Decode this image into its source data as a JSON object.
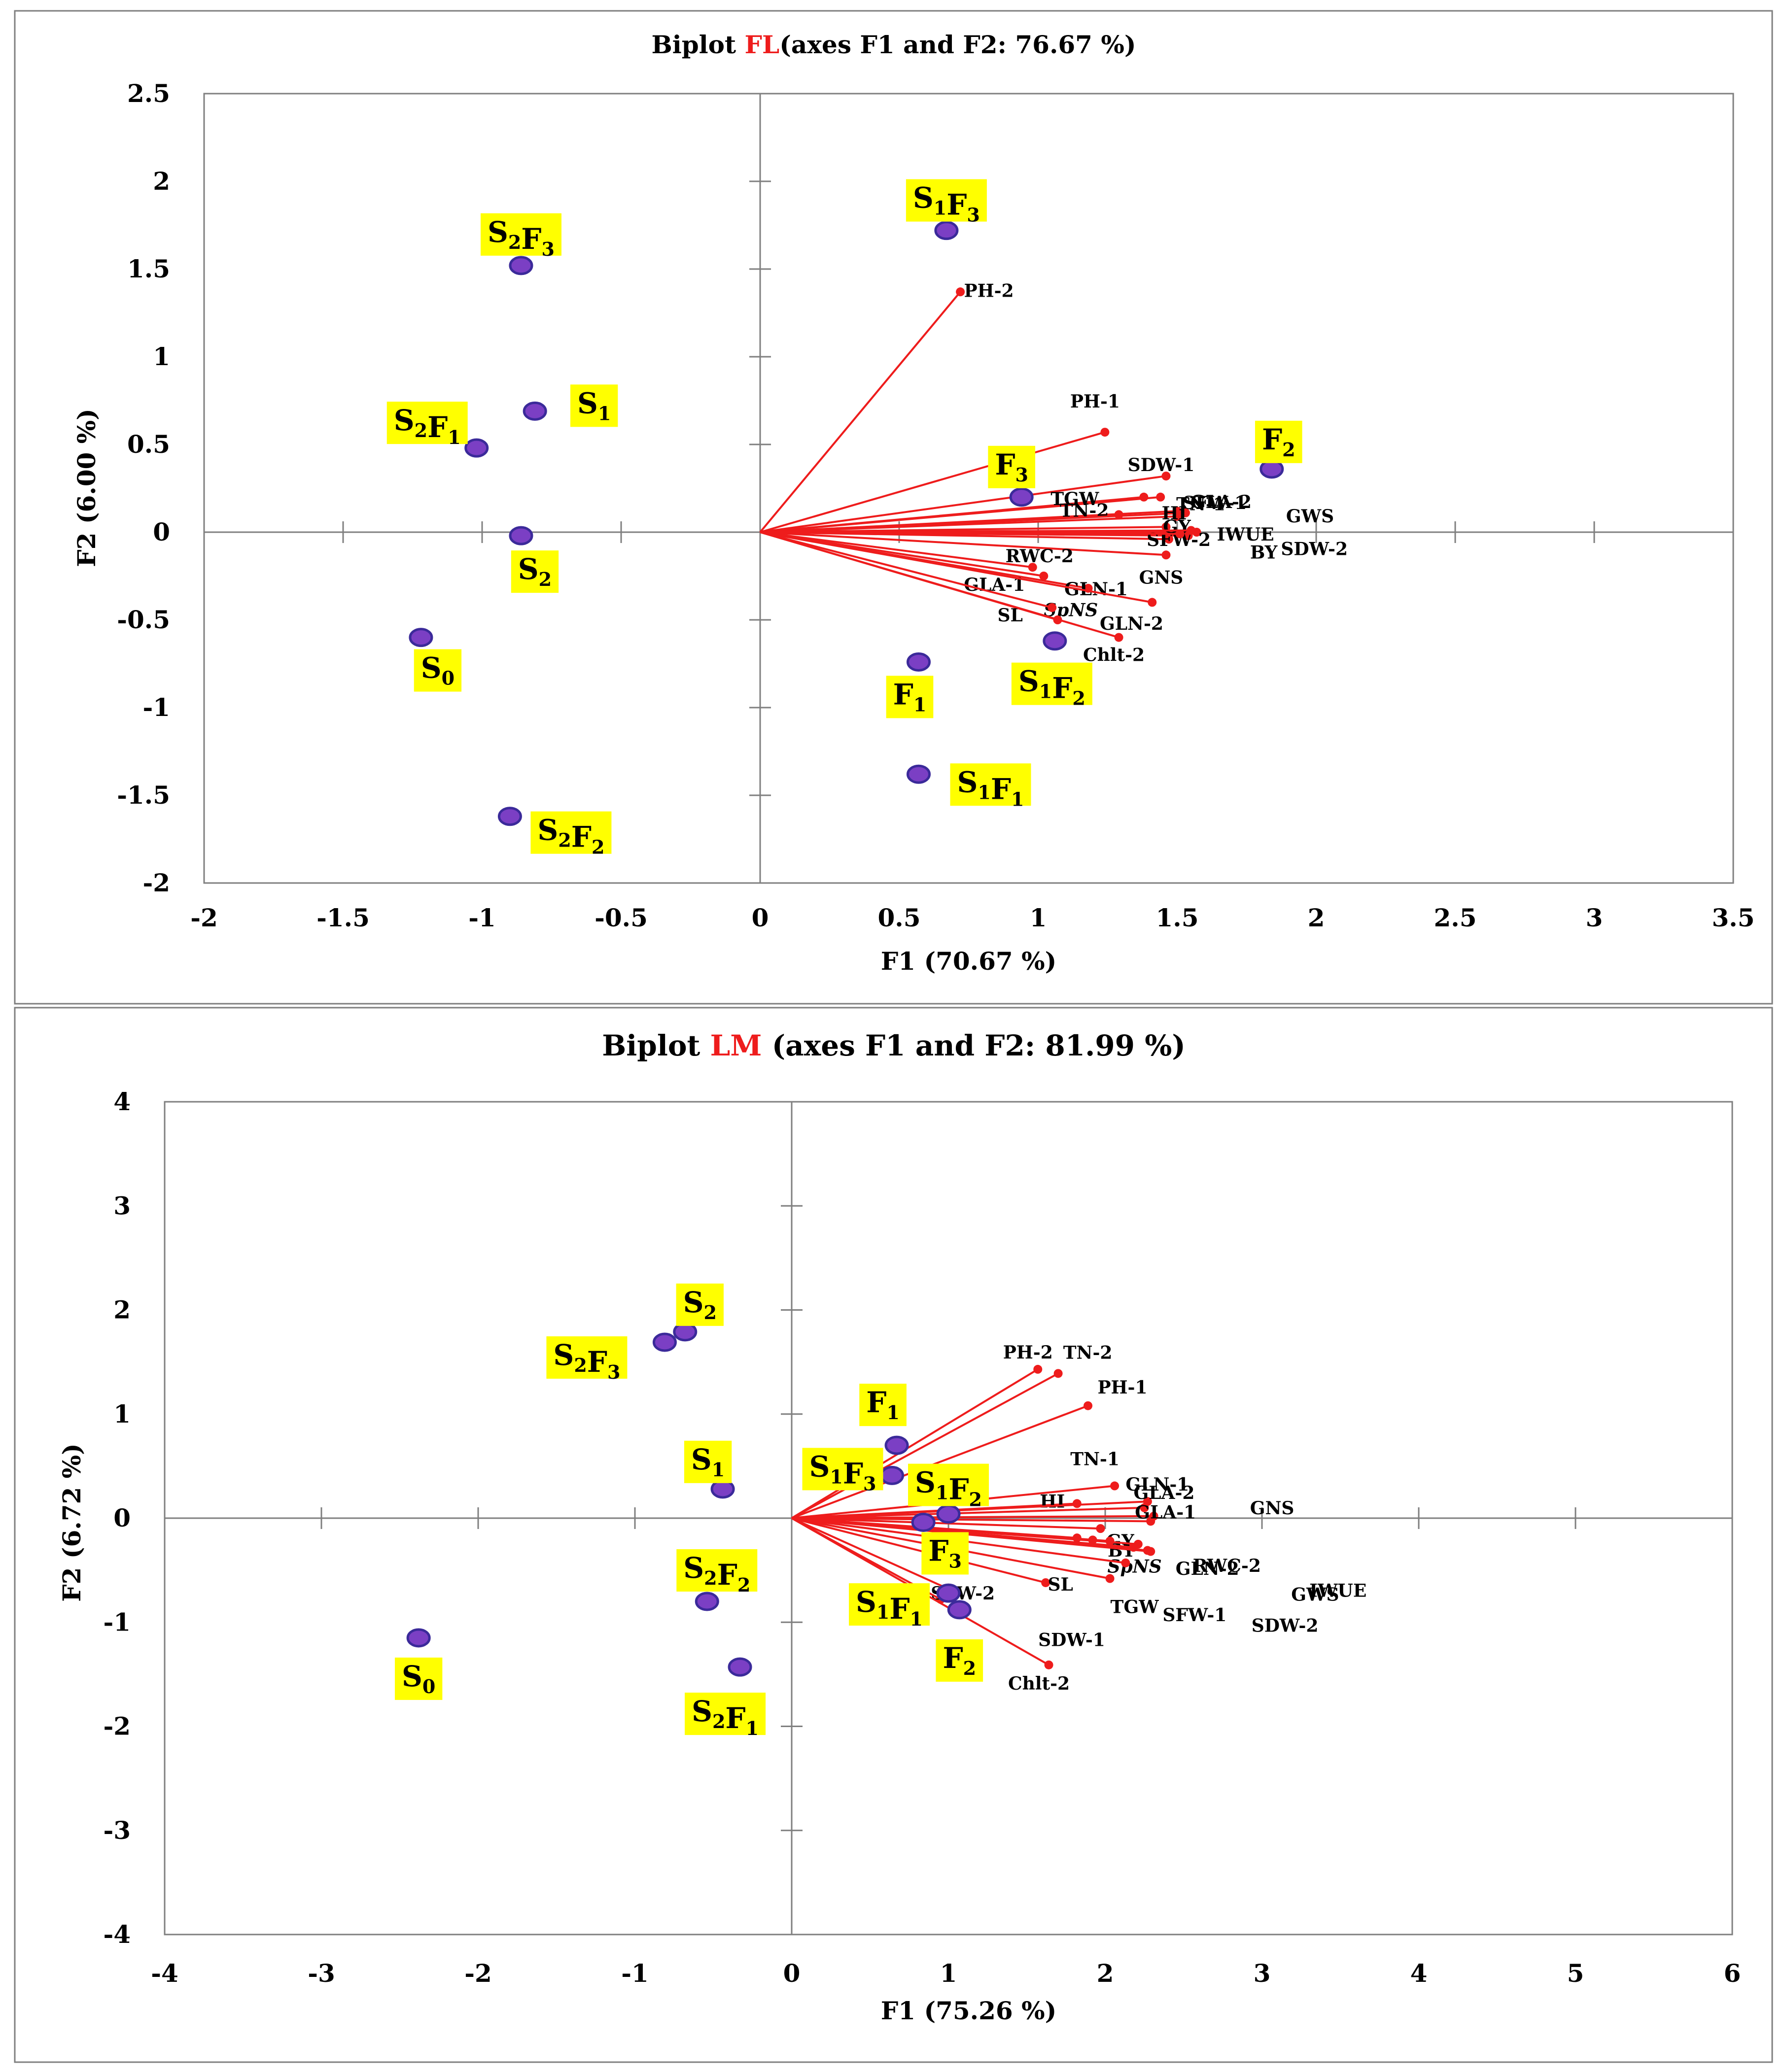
{
  "colors": {
    "vector": "#ee1c1c",
    "point_fill": "#7b3fc4",
    "point_edge": "#3b2a9a",
    "label_bg": "#ffff00",
    "title_highlight": "#ee1c1c",
    "axis": "#7f7f7f",
    "text": "#000000"
  },
  "chart_data": [
    {
      "type": "scatter",
      "title": {
        "prefix": "Biplot ",
        "highlight": "FL",
        "suffix": "(axes F1 and F2: 76.67 %)"
      },
      "xlabel": "F1 (70.67 %)",
      "ylabel": "F2 (6.00 %)",
      "xlim": [
        -2,
        3.5
      ],
      "ylim": [
        -2,
        2.5
      ],
      "xticks": [
        -2,
        -1.5,
        -1,
        -0.5,
        0,
        0.5,
        1,
        1.5,
        2,
        2.5,
        3,
        3.5
      ],
      "yticks": [
        -2,
        -1.5,
        -1,
        -0.5,
        0,
        0.5,
        1,
        1.5,
        2,
        2.5
      ],
      "xtick_labels": [
        "-2",
        "-1.5",
        "-1",
        "-0.5",
        "0",
        "0.5",
        "1",
        "1.5",
        "2",
        "2.5",
        "3",
        "3.5"
      ],
      "ytick_labels": [
        "-2",
        "-1.5",
        "-1",
        "-0.5",
        "0",
        "0.5",
        "1",
        "1.5",
        "2",
        "2.5"
      ],
      "variables": [
        {
          "name": "PH-2",
          "x": 0.72,
          "y": 1.37
        },
        {
          "name": "PH-1",
          "x": 1.24,
          "y": 0.57
        },
        {
          "name": "SDW-1",
          "x": 1.46,
          "y": 0.32
        },
        {
          "name": "SFW-1",
          "x": 1.44,
          "y": 0.2
        },
        {
          "name": "TGW",
          "x": 1.38,
          "y": 0.2
        },
        {
          "name": "TN-1",
          "x": 1.5,
          "y": 0.12
        },
        {
          "name": "TN-2",
          "x": 1.29,
          "y": 0.1
        },
        {
          "name": "GLA-2",
          "x": 1.53,
          "y": 0.11
        },
        {
          "name": "HI",
          "x": 1.5,
          "y": 0.09
        },
        {
          "name": "GWS",
          "x": 1.57,
          "y": 0.0
        },
        {
          "name": "GY",
          "x": 1.46,
          "y": 0.03
        },
        {
          "name": "IWUE",
          "x": 1.54,
          "y": -0.02
        },
        {
          "name": "SFW-2",
          "x": 1.47,
          "y": -0.04
        },
        {
          "name": "BY",
          "x": 1.51,
          "y": -0.01
        },
        {
          "name": "SDW-2",
          "x": 1.55,
          "y": 0.01
        },
        {
          "name": "GNS",
          "x": 1.46,
          "y": -0.13
        },
        {
          "name": "RWC-2",
          "x": 0.98,
          "y": -0.2
        },
        {
          "name": "GLN-1",
          "x": 1.18,
          "y": -0.32
        },
        {
          "name": "GLA-1",
          "x": 1.02,
          "y": -0.25
        },
        {
          "name": "SpNS",
          "x": 1.41,
          "y": -0.4
        },
        {
          "name": "GLN-2",
          "x": 1.07,
          "y": -0.5
        },
        {
          "name": "SL",
          "x": 1.05,
          "y": -0.43
        },
        {
          "name": "Chlt-2",
          "x": 1.29,
          "y": -0.6
        }
      ],
      "observations": [
        {
          "label": "S2F3",
          "x": -0.86,
          "y": 1.52
        },
        {
          "label": "S1F3",
          "x": 0.67,
          "y": 1.72
        },
        {
          "label": "S1",
          "x": -0.81,
          "y": 0.69
        },
        {
          "label": "S2F1",
          "x": -1.02,
          "y": 0.48
        },
        {
          "label": "F2",
          "x": 1.84,
          "y": 0.36
        },
        {
          "label": "F3",
          "x": 0.94,
          "y": 0.2
        },
        {
          "label": "S2",
          "x": -0.86,
          "y": -0.02
        },
        {
          "label": "S0",
          "x": -1.22,
          "y": -0.6
        },
        {
          "label": "F1",
          "x": 0.57,
          "y": -0.74
        },
        {
          "label": "S1F2",
          "x": 1.06,
          "y": -0.62
        },
        {
          "label": "S1F1",
          "x": 0.57,
          "y": -1.38
        },
        {
          "label": "S2F2",
          "x": -0.9,
          "y": -1.62
        }
      ]
    },
    {
      "type": "scatter",
      "title": {
        "prefix": "Biplot ",
        "highlight": "LM",
        "suffix": " (axes F1 and F2: 81.99 %)"
      },
      "xlabel": "F1 (75.26 %)",
      "ylabel": "F2 (6.72 %)",
      "xlim": [
        -4,
        6
      ],
      "ylim": [
        -4,
        4
      ],
      "xticks": [
        -4,
        -3,
        -2,
        -1,
        0,
        1,
        2,
        3,
        4,
        5,
        6
      ],
      "yticks": [
        -4,
        -3,
        -2,
        -1,
        0,
        1,
        2,
        3,
        4
      ],
      "xtick_labels": [
        "-4",
        "-3",
        "-2",
        "-1",
        "0",
        "1",
        "2",
        "3",
        "4",
        "5",
        "6"
      ],
      "ytick_labels": [
        "-4",
        "-3",
        "-2",
        "-1",
        "0",
        "1",
        "2",
        "3",
        "4"
      ],
      "variables": [
        {
          "name": "PH-2",
          "x": 1.57,
          "y": 1.43
        },
        {
          "name": "TN-2",
          "x": 1.7,
          "y": 1.39
        },
        {
          "name": "PH-1",
          "x": 1.89,
          "y": 1.08
        },
        {
          "name": "TN-1",
          "x": 2.06,
          "y": 0.31
        },
        {
          "name": "HI",
          "x": 1.82,
          "y": 0.14
        },
        {
          "name": "GLN-1",
          "x": 2.27,
          "y": 0.16
        },
        {
          "name": "GLA-2",
          "x": 2.25,
          "y": 0.1
        },
        {
          "name": "GNS",
          "x": 2.31,
          "y": 0.02
        },
        {
          "name": "GLA-1",
          "x": 2.29,
          "y": -0.03
        },
        {
          "name": "GY",
          "x": 1.97,
          "y": -0.1
        },
        {
          "name": "BY",
          "x": 1.82,
          "y": -0.19
        },
        {
          "name": "RWC-2",
          "x": 2.21,
          "y": -0.25
        },
        {
          "name": "IWUE",
          "x": 2.29,
          "y": -0.32
        },
        {
          "name": "SpNS",
          "x": 2.03,
          "y": -0.22
        },
        {
          "name": "GLN-2",
          "x": 2.18,
          "y": -0.28
        },
        {
          "name": "SFW-1",
          "x": 2.13,
          "y": -0.43
        },
        {
          "name": "GWS",
          "x": 2.27,
          "y": -0.31
        },
        {
          "name": "TGW",
          "x": 2.03,
          "y": -0.58
        },
        {
          "name": "SL",
          "x": 1.62,
          "y": -0.62
        },
        {
          "name": "SDW-1",
          "x": 1.0,
          "y": -0.68
        },
        {
          "name": "SDW-2",
          "x": 1.92,
          "y": -0.21
        },
        {
          "name": "SFW-2",
          "x": 0.95,
          "y": -0.78
        },
        {
          "name": "Chlt-2",
          "x": 1.64,
          "y": -1.41
        }
      ],
      "observations": [
        {
          "label": "S2",
          "x": -0.68,
          "y": 1.79
        },
        {
          "label": "S2F3",
          "x": -0.81,
          "y": 1.69
        },
        {
          "label": "F1",
          "x": 0.67,
          "y": 0.7
        },
        {
          "label": "S1",
          "x": -0.44,
          "y": 0.28
        },
        {
          "label": "S1F3",
          "x": 0.64,
          "y": 0.41
        },
        {
          "label": "S1F2",
          "x": 1.0,
          "y": 0.04
        },
        {
          "label": "F3",
          "x": 0.84,
          "y": -0.04
        },
        {
          "label": "S2F2",
          "x": -0.54,
          "y": -0.8
        },
        {
          "label": "S1F1",
          "x": 1.0,
          "y": -0.72
        },
        {
          "label": "F2",
          "x": 1.07,
          "y": -0.88
        },
        {
          "label": "S0",
          "x": -2.38,
          "y": -1.15
        },
        {
          "label": "S2F1",
          "x": -0.33,
          "y": -1.43
        }
      ]
    }
  ]
}
